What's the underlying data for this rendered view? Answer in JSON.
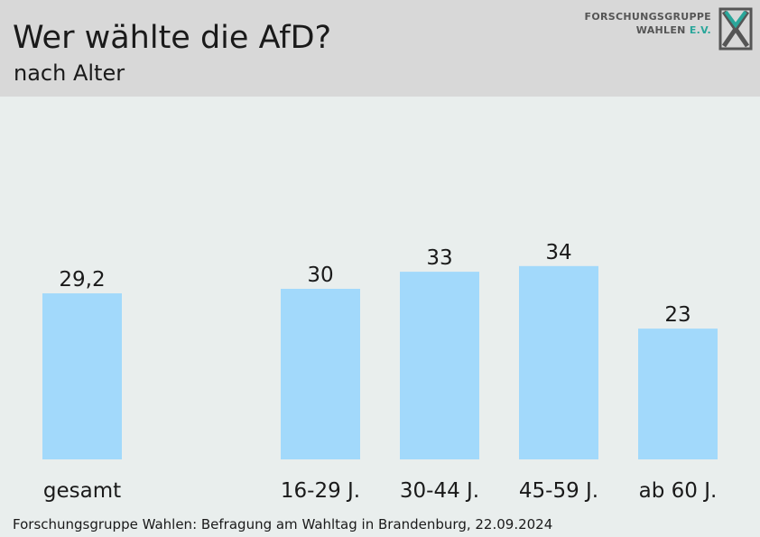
{
  "header": {
    "title": "Wer wählte die AfD?",
    "subtitle": "nach Alter"
  },
  "logo": {
    "line1": "FORSCHUNGSGRUPPE",
    "line2": "WAHLEN",
    "line2_suffix": "E.V.",
    "accent_color": "#2aa69a"
  },
  "chart_data": {
    "type": "bar",
    "categories": [
      "gesamt",
      "16-29 J.",
      "30-44 J.",
      "45-59 J.",
      "ab 60 J."
    ],
    "values": [
      29.2,
      30,
      33,
      34,
      23
    ],
    "value_labels": [
      "29,2",
      "30",
      "33",
      "34",
      "23"
    ],
    "title": "Wer wählte die AfD?",
    "subtitle": "nach Alter",
    "xlabel": "",
    "ylabel": "",
    "ylim": [
      0,
      64
    ],
    "grid": false,
    "legend": "none",
    "bar_color": "#a2d9fb"
  },
  "footer": {
    "source": "Forschungsgruppe Wahlen: Befragung am Wahltag in Brandenburg, 22.09.2024"
  }
}
